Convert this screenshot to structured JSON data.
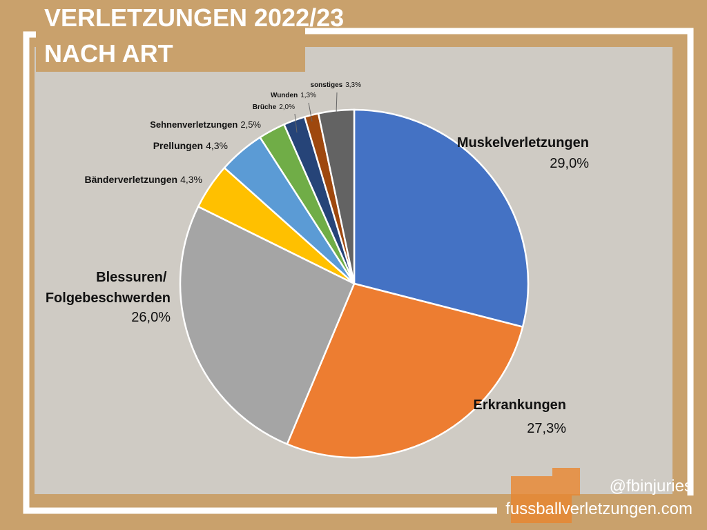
{
  "chart_data": {
    "type": "pie",
    "title": "VERLETZUNGEN 2022/23",
    "subtitle": "NACH ART",
    "categories": [
      "Muskelverletzungen",
      "Erkrankungen",
      "Blessuren/ Folgebeschwerden",
      "Bänderverletzungen",
      "Prellungen",
      "Sehnenverletzungen",
      "Brüche",
      "Wunden",
      "sonstiges"
    ],
    "values": [
      29.0,
      27.3,
      26.0,
      4.3,
      4.3,
      2.5,
      2.0,
      1.3,
      3.3
    ],
    "value_labels": [
      "29,0%",
      "27,3%",
      "26,0%",
      "4,3%",
      "4,3%",
      "2,5%",
      "2,0%",
      "1,3%",
      "3,3%"
    ],
    "colors": [
      "#4472c4",
      "#ed7d31",
      "#a5a5a5",
      "#ffc000",
      "#5b9bd5",
      "#70ad47",
      "#264478",
      "#9e480e",
      "#636363"
    ]
  },
  "footer": {
    "handle": "@fbinjuries",
    "website": "fussballverletzungen.com"
  }
}
